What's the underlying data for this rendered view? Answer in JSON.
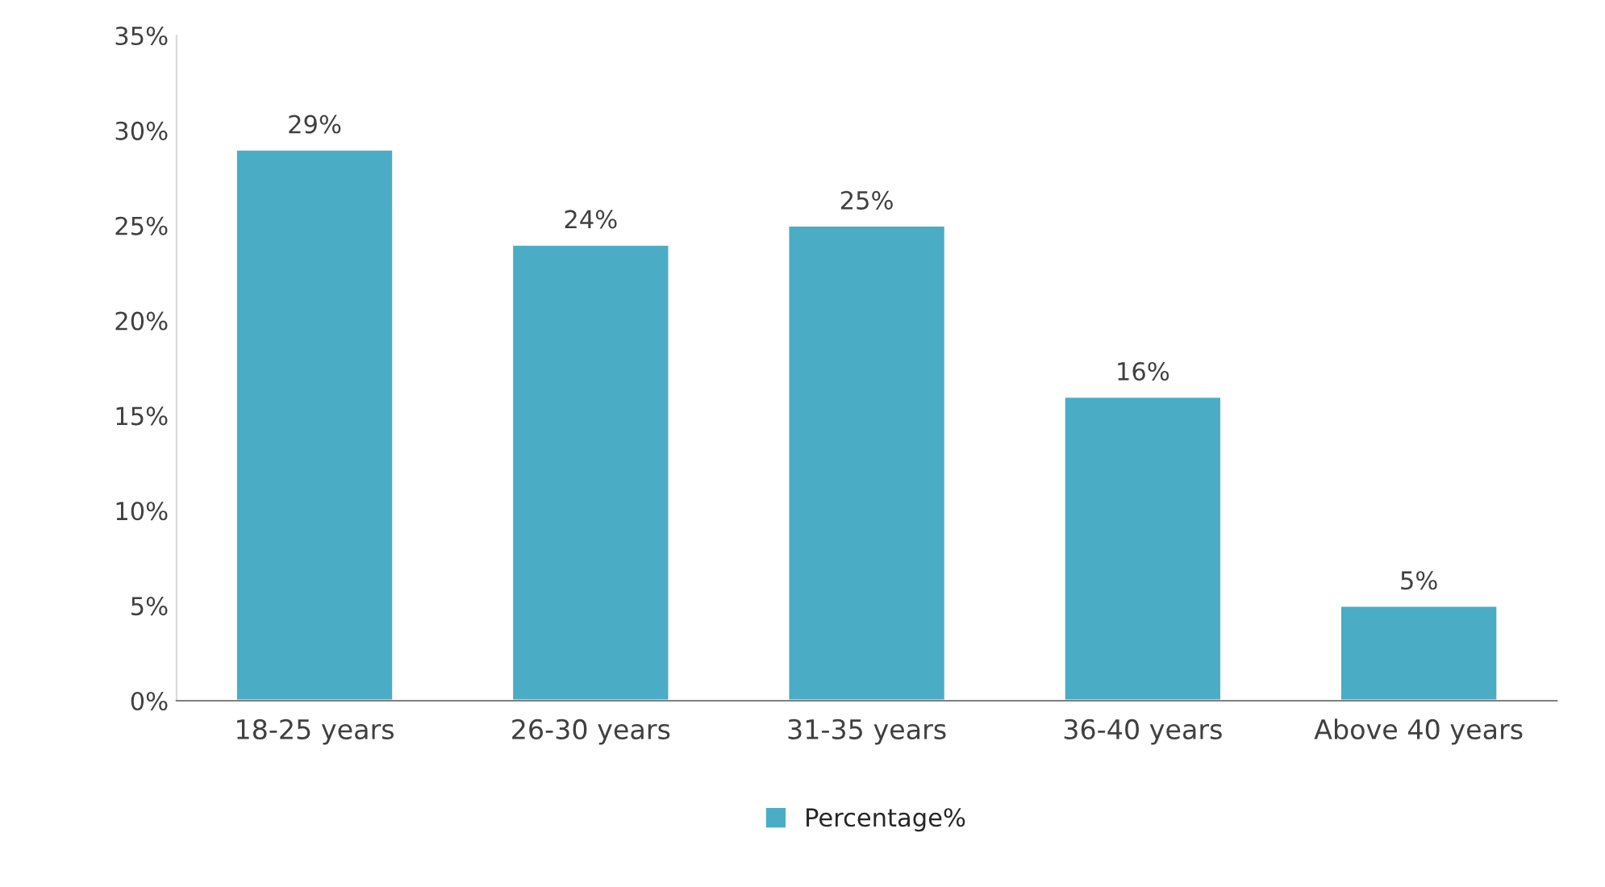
{
  "chart_data": {
    "type": "bar",
    "categories": [
      "18-25 years",
      "26-30 years",
      "31-35 years",
      "36-40 years",
      "Above 40 years"
    ],
    "series": [
      {
        "name": "Percentage%",
        "color": "#4bacc6",
        "values": [
          29,
          24,
          25,
          16,
          5
        ],
        "value_labels": [
          "29%",
          "24%",
          "25%",
          "16%",
          "5%"
        ]
      }
    ],
    "ylim": [
      0,
      35
    ],
    "yticks": [
      {
        "value": 0,
        "label": "0%"
      },
      {
        "value": 5,
        "label": "5%"
      },
      {
        "value": 10,
        "label": "10%"
      },
      {
        "value": 15,
        "label": "15%"
      },
      {
        "value": 20,
        "label": "20%"
      },
      {
        "value": 25,
        "label": "25%"
      },
      {
        "value": 30,
        "label": "30%"
      },
      {
        "value": 35,
        "label": "35%"
      }
    ],
    "grid": false,
    "legend": "bottom"
  }
}
